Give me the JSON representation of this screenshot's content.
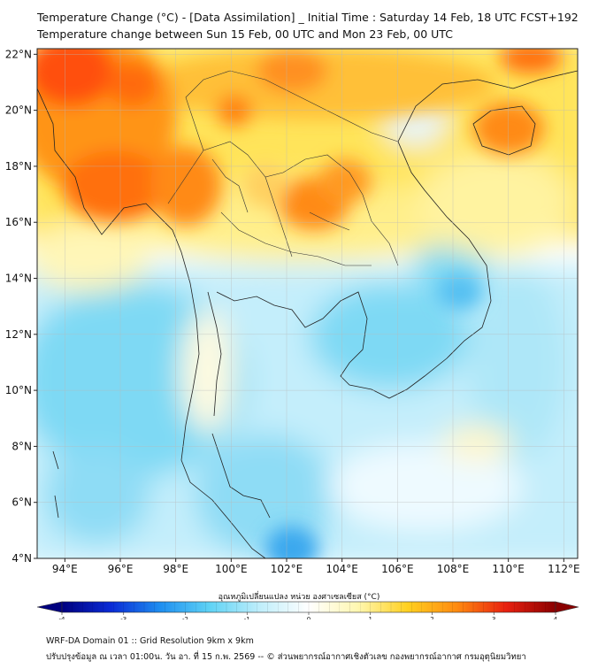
{
  "header": {
    "title_line1": "Temperature Change (°C) - [Data Assimilation] _ Initial Time : Saturday 14 Feb, 18 UTC FCST+192",
    "title_line2": "Temperature change between Sun 15 Feb, 00 UTC and Mon 23 Feb, 00 UTC"
  },
  "map": {
    "lon_range": [
      93,
      112.5
    ],
    "lat_range": [
      4,
      22.2
    ],
    "lon_ticks": [
      {
        "value": 94,
        "label": "94°E"
      },
      {
        "value": 96,
        "label": "96°E"
      },
      {
        "value": 98,
        "label": "98°E"
      },
      {
        "value": 100,
        "label": "100°E"
      },
      {
        "value": 102,
        "label": "102°E"
      },
      {
        "value": 104,
        "label": "104°E"
      },
      {
        "value": 106,
        "label": "106°E"
      },
      {
        "value": 108,
        "label": "108°E"
      },
      {
        "value": 110,
        "label": "110°E"
      },
      {
        "value": 112,
        "label": "112°E"
      }
    ],
    "lat_ticks": [
      {
        "value": 22,
        "label": "22°N"
      },
      {
        "value": 20,
        "label": "20°N"
      },
      {
        "value": 18,
        "label": "18°N"
      },
      {
        "value": 16,
        "label": "16°N"
      },
      {
        "value": 14,
        "label": "14°N"
      },
      {
        "value": 12,
        "label": "12°N"
      },
      {
        "value": 10,
        "label": "10°N"
      },
      {
        "value": 8,
        "label": "8°N"
      },
      {
        "value": 6,
        "label": "6°N"
      },
      {
        "value": 4,
        "label": "4°N"
      }
    ],
    "grid": true
  },
  "colorbar": {
    "label": "อุณหภูมิเปลี่ยนแปลง หน่วย องศาเซลเซียส (°C)",
    "min": -4,
    "max": 4,
    "ticks": [
      {
        "value": -4,
        "label": "-4"
      },
      {
        "value": -3,
        "label": "-3"
      },
      {
        "value": -2,
        "label": "-2"
      },
      {
        "value": -1,
        "label": "-1"
      },
      {
        "value": 0,
        "label": "0"
      },
      {
        "value": 1,
        "label": "1"
      },
      {
        "value": 2,
        "label": "2"
      },
      {
        "value": 3,
        "label": "3"
      },
      {
        "value": 4,
        "label": "4"
      }
    ],
    "colors": [
      "#00007f",
      "#0a2bd6",
      "#1f8ff0",
      "#5fd3f5",
      "#bfeefb",
      "#ffffff",
      "#fff7b0",
      "#ffd020",
      "#ff8a10",
      "#e82010",
      "#8a0000"
    ]
  },
  "footer": {
    "line1": "WRF-DA Domain 01 :: Grid Resolution 9km x 9km",
    "line2": "ปรับปรุงข้อมูล ณ เวลา 01:00น. วัน อา. ที่ 15 ก.พ. 2569 -- © ส่วนพยากรณ์อากาศเชิงตัวเลข กองพยากรณ์อากาศ กรมอุตุนิยมวิทยา"
  }
}
